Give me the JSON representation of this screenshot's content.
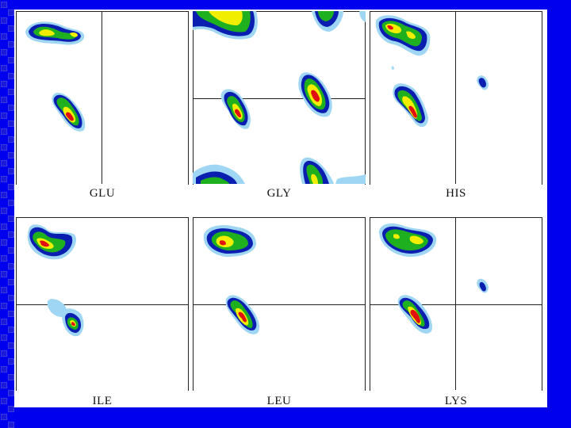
{
  "slide": {
    "background_color": "#0000EE"
  },
  "panels": [
    {
      "id": "glu",
      "label": "GLU"
    },
    {
      "id": "gly",
      "label": "GLY"
    },
    {
      "id": "his",
      "label": "HIS"
    },
    {
      "id": "ile",
      "label": "ILE"
    },
    {
      "id": "leu",
      "label": "LEU"
    },
    {
      "id": "lys",
      "label": "LYS"
    }
  ],
  "colors": {
    "level_1": "#9fd6f4",
    "level_2": "#0a1fb0",
    "level_3": "#1fb01f",
    "level_4": "#f2ee00",
    "level_5": "#e01010",
    "level_6": "#7a0000"
  }
}
